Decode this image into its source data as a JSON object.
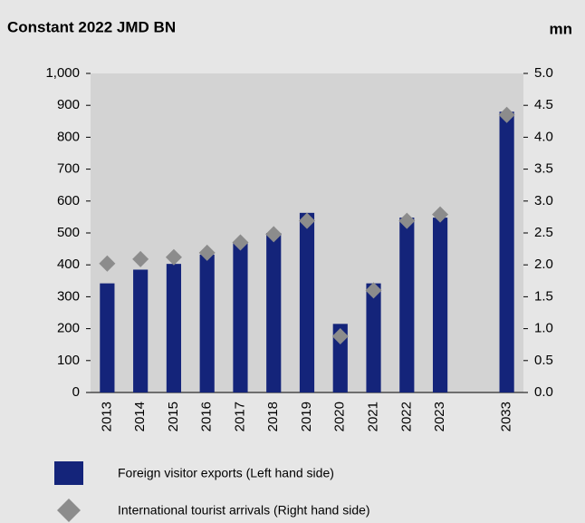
{
  "chart_data": {
    "type": "bar",
    "title": "Constant 2022 JMD BN",
    "y2label": "mn",
    "categories": [
      "2013",
      "2014",
      "2015",
      "2016",
      "2017",
      "2018",
      "2019",
      "2020",
      "2021",
      "2022",
      "2023",
      null,
      "2033"
    ],
    "series": [
      {
        "name": "Foreign visitor exports (Left hand side)",
        "color": "#14247a",
        "axis": "y",
        "values": [
          342,
          385,
          403,
          432,
          468,
          500,
          563,
          215,
          342,
          548,
          548,
          null,
          880
        ]
      },
      {
        "name": "International tourist arrivals (Right hand side)",
        "color": "#8c8c8c",
        "axis": "y2",
        "marker": "diamond",
        "values": [
          2.02,
          2.09,
          2.12,
          2.19,
          2.35,
          2.48,
          2.69,
          0.88,
          1.6,
          2.69,
          2.79,
          null,
          4.35
        ]
      }
    ],
    "ylim": [
      0,
      1000
    ],
    "yticks": [
      0,
      100,
      200,
      300,
      400,
      500,
      600,
      700,
      800,
      900,
      {
        "value": 1000,
        "label": "1,000"
      }
    ],
    "y2lim": [
      0,
      5
    ],
    "y2ticks": [
      {
        "value": 0,
        "label": "0.0"
      },
      {
        "value": 0.5,
        "label": "0.5"
      },
      {
        "value": 1,
        "label": "1.0"
      },
      {
        "value": 1.5,
        "label": "1.5"
      },
      {
        "value": 2,
        "label": "2.0"
      },
      {
        "value": 2.5,
        "label": "2.5"
      },
      {
        "value": 3,
        "label": "3.0"
      },
      {
        "value": 3.5,
        "label": "3.5"
      },
      {
        "value": 4,
        "label": "4.0"
      },
      {
        "value": 4.5,
        "label": "4.5"
      },
      {
        "value": 5,
        "label": "5.0"
      }
    ]
  }
}
